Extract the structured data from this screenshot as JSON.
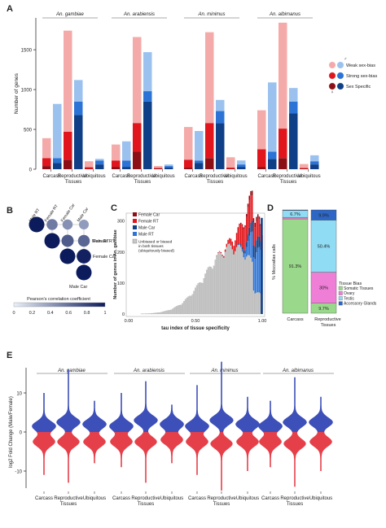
{
  "colors": {
    "weak_female": "#f4aaa8",
    "strong_female": "#e0161c",
    "specific_female": "#8c0f16",
    "weak_male": "#9bc2ef",
    "strong_male": "#2c73d6",
    "specific_male": "#0f3f86",
    "somatic": "#9ad98c",
    "ovary": "#ef7ed6",
    "testis": "#8fdcf4",
    "accessory": "#2d66c4",
    "gray_bar": "#b9b9b9",
    "violin_blue": "#3d4fb8",
    "violin_red": "#e5404a"
  },
  "panel_labels": {
    "a": "A",
    "b": "B",
    "c": "C",
    "d": "D",
    "e": "E"
  },
  "chart_data": [
    {
      "id": "A",
      "type": "bar",
      "title": "",
      "ylabel": "Number of genes",
      "xlabel": "Tissues",
      "ylim": [
        0,
        1900
      ],
      "yticks": [
        "0",
        "500",
        "1000",
        "1500"
      ],
      "species": [
        "An. gambiae",
        "An. arabiensis",
        "An. minimus",
        "An. albimanus"
      ],
      "categories": [
        "Carcass",
        "Reproductive",
        "Ubiquitous"
      ],
      "stack_order": [
        "Sex Specific",
        "Strong sex-bias",
        "Weak sex-bias"
      ],
      "legend": [
        "Weak sex-bias",
        "Strong sex-bias",
        "Sex Specific"
      ],
      "legend_signs": [
        "♀",
        "♂"
      ],
      "female": [
        [
          [
            40,
            100,
            250
          ],
          [
            120,
            350,
            1270
          ],
          [
            5,
            20,
            75
          ]
        ],
        [
          [
            30,
            80,
            200
          ],
          [
            220,
            360,
            1080
          ],
          [
            5,
            10,
            25
          ]
        ],
        [
          [
            20,
            100,
            410
          ],
          [
            140,
            440,
            1140
          ],
          [
            5,
            15,
            130
          ]
        ],
        [
          [
            30,
            220,
            490
          ],
          [
            140,
            370,
            1330
          ],
          [
            5,
            10,
            50
          ]
        ]
      ],
      "male": [
        [
          [
            80,
            60,
            680
          ],
          [
            680,
            170,
            270
          ],
          [
            60,
            50,
            20
          ]
        ],
        [
          [
            30,
            80,
            240
          ],
          [
            850,
            130,
            490
          ],
          [
            20,
            20,
            20
          ]
        ],
        [
          [
            80,
            30,
            370
          ],
          [
            580,
            150,
            140
          ],
          [
            30,
            30,
            50
          ]
        ],
        [
          [
            130,
            90,
            870
          ],
          [
            700,
            150,
            170
          ],
          [
            60,
            40,
            75
          ]
        ]
      ]
    },
    {
      "id": "B",
      "type": "heatmap",
      "labels": [
        "Male RT",
        "Female RT",
        "Female Car",
        "Male Car"
      ],
      "values": [
        [
          1.0,
          0.55,
          0.45,
          0.4
        ],
        [
          0.55,
          1.0,
          0.7,
          0.65
        ],
        [
          0.45,
          0.7,
          1.0,
          0.97
        ],
        [
          0.4,
          0.65,
          0.97,
          1.0
        ]
      ],
      "scale_title": "Pearson's correlation coefficient",
      "scale_ticks": [
        "0",
        "0.2",
        "0.4",
        "0.6",
        "0.8",
        "1"
      ]
    },
    {
      "id": "C",
      "type": "bar",
      "xlabel": "tau index of tissue specificity",
      "ylabel": "Number of genes in An. gambiae",
      "xlim": [
        0,
        1.0
      ],
      "ylim": [
        0,
        320
      ],
      "xticks": [
        "0.00",
        "0.50",
        "1.00"
      ],
      "yticks": [
        "0",
        "100",
        "200",
        "300"
      ],
      "legend": [
        "Female Car",
        "Female RT",
        "Male Car",
        "Male RT",
        "Unbiased or biased in both tissues (ubiquitously biased)"
      ],
      "series": [
        {
          "name": "Female Car",
          "peak_x": 0.93,
          "peak": 15
        },
        {
          "name": "Female RT",
          "peak_x": 0.9,
          "peak": 90
        },
        {
          "name": "Male Car",
          "peak_x": 0.95,
          "peak": 40
        },
        {
          "name": "Male RT",
          "peak_x": 0.97,
          "peak": 150
        },
        {
          "name": "Unbiased or biased in both tissues (ubiquitously biased)",
          "peak_x": 0.78,
          "peak": 230
        }
      ],
      "spike_at_1": 310
    },
    {
      "id": "D",
      "type": "bar",
      "ylabel": "% Mozzatlas calls",
      "xlabel": "Tissues",
      "categories": [
        "Carcass",
        "Reproductive"
      ],
      "legend_title": "Tissue Bias",
      "legend": [
        "Somatic Tissues",
        "Ovary",
        "Testis",
        "Accessory Glands"
      ],
      "series": [
        {
          "name": "Somatic Tissues",
          "values": [
            91.3,
            9.7
          ]
        },
        {
          "name": "Ovary",
          "values": [
            1.5,
            30
          ]
        },
        {
          "name": "Testis",
          "values": [
            6.7,
            50.4
          ]
        },
        {
          "name": "Accessory Glands",
          "values": [
            0.5,
            9.9
          ]
        }
      ],
      "labels": [
        [
          "91.3%",
          "",
          "6.7%",
          ""
        ],
        [
          "9.7%",
          "30%",
          "50.4%",
          "9.9%"
        ]
      ]
    },
    {
      "id": "E",
      "type": "violin",
      "ylabel": "log2 Fold Change (Male/Female)",
      "xlabel": "Tissues",
      "ylim": [
        -16,
        18
      ],
      "yticks": [
        "10",
        "0",
        "-10"
      ],
      "species": [
        "An. gambiae",
        "An. arabiensis",
        "An. minimus",
        "An. albimanus"
      ],
      "categories": [
        "Carcass",
        "Reproductive",
        "Ubiquitous"
      ],
      "violins": [
        [
          [
            -11,
            10,
            1.5,
            -2.5
          ],
          [
            -13,
            16,
            2.5,
            -2.5
          ],
          [
            -8,
            8,
            2,
            -2.5
          ]
        ],
        [
          [
            -9,
            10,
            1.5,
            -2.5
          ],
          [
            -13,
            13,
            3,
            -2.5
          ],
          [
            -8,
            7,
            2,
            -2
          ]
        ],
        [
          [
            -11,
            12,
            1.5,
            -2.5
          ],
          [
            -15,
            18,
            3,
            -3
          ],
          [
            -10,
            9,
            2,
            -2.5
          ]
        ],
        [
          [
            -9,
            8,
            1.5,
            -2.5
          ],
          [
            -14,
            14,
            2.5,
            -3
          ],
          [
            -10,
            9,
            2.5,
            -2.5
          ]
        ]
      ]
    }
  ]
}
